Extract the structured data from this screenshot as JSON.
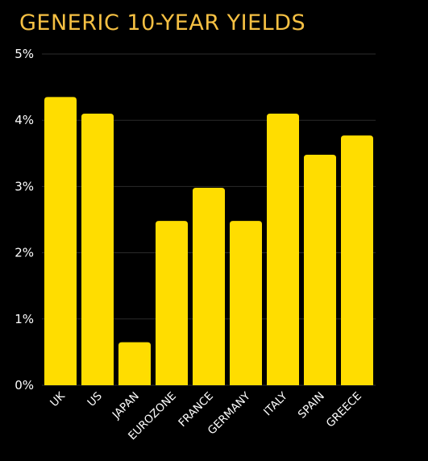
{
  "colors": {
    "background": "#000000",
    "title": "#F5C043",
    "bar": "#FFDD00",
    "gridline": "#2B2B2B",
    "text": "#FFFFFF"
  },
  "chart_data": {
    "type": "bar",
    "title": "GENERIC 10-YEAR YIELDS",
    "xlabel": "",
    "ylabel": "",
    "ylim": [
      0,
      5
    ],
    "yticks": [
      0,
      1,
      2,
      3,
      4,
      5
    ],
    "ytick_labels": [
      "0%",
      "1%",
      "2%",
      "3%",
      "4%",
      "5%"
    ],
    "categories": [
      "UK",
      "US",
      "JAPAN",
      "EUROZONE",
      "FRANCE",
      "GERMANY",
      "ITALY",
      "SPAIN",
      "GREECE"
    ],
    "values": [
      4.35,
      4.1,
      0.65,
      2.48,
      2.98,
      2.48,
      4.1,
      3.48,
      3.77
    ],
    "grid": true,
    "legend": "none"
  }
}
